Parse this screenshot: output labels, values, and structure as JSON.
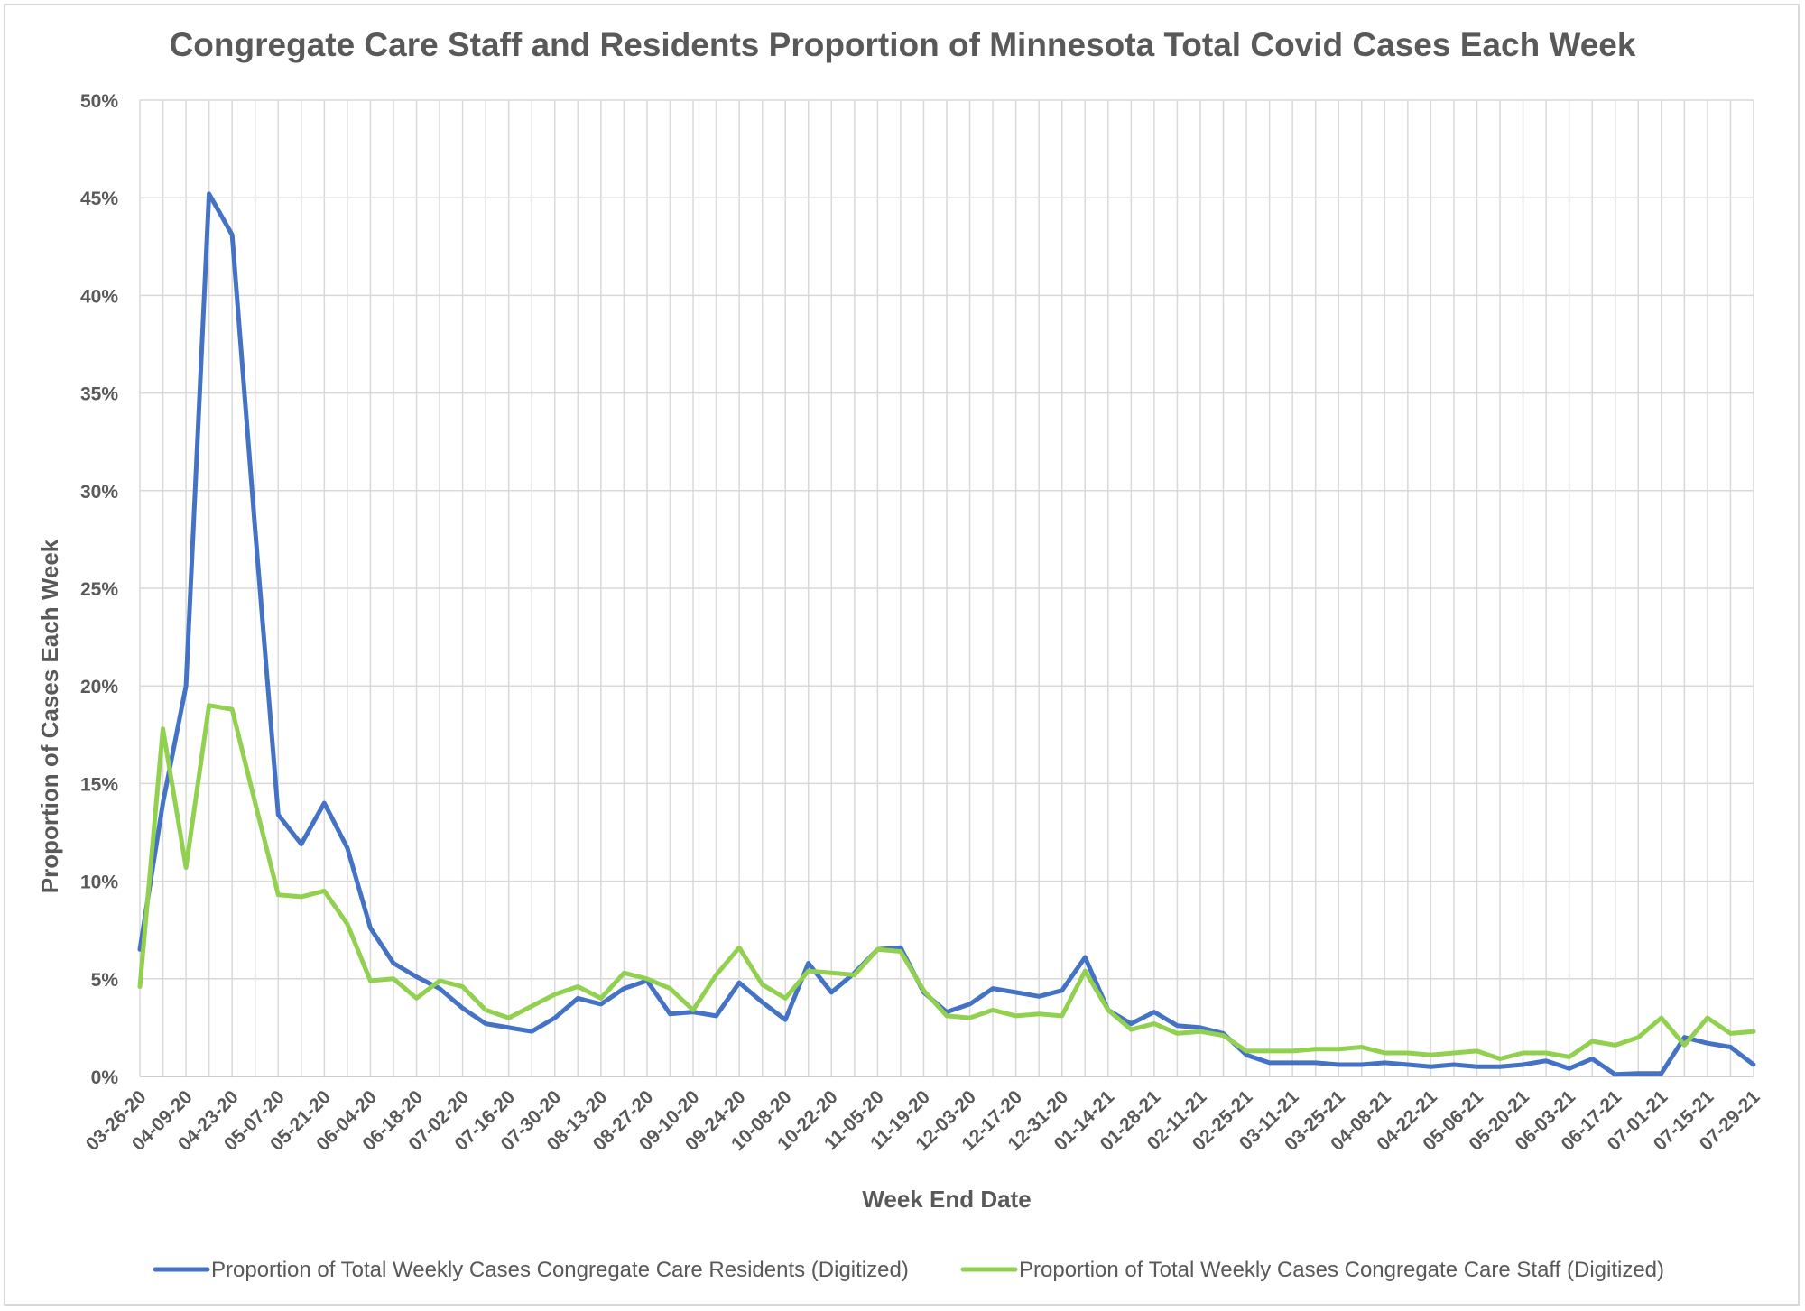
{
  "chart_data": {
    "type": "line",
    "title": "Congregate Care Staff and Residents Proportion of Minnesota Total Covid Cases Each Week",
    "xlabel": "Week End Date",
    "ylabel": "Proportion of Cases Each Week",
    "ylim": [
      0,
      50
    ],
    "y_ticks": [
      "0%",
      "5%",
      "10%",
      "15%",
      "20%",
      "25%",
      "30%",
      "35%",
      "40%",
      "45%",
      "50%"
    ],
    "grid": true,
    "legend_position": "bottom",
    "x_tick_labels": [
      "03-26-20",
      "04-09-20",
      "04-23-20",
      "05-07-20",
      "05-21-20",
      "06-04-20",
      "06-18-20",
      "07-02-20",
      "07-16-20",
      "07-30-20",
      "08-13-20",
      "08-27-20",
      "09-10-20",
      "09-24-20",
      "10-08-20",
      "10-22-20",
      "11-05-20",
      "11-19-20",
      "12-03-20",
      "12-17-20",
      "12-31-20",
      "01-14-21",
      "01-28-21",
      "02-11-21",
      "02-25-21",
      "03-11-21",
      "03-25-21",
      "04-08-21",
      "04-22-21",
      "05-06-21",
      "05-20-21",
      "06-03-21",
      "06-17-21",
      "07-01-21",
      "07-15-21",
      "07-29-21"
    ],
    "x": [
      "03-26-20",
      "04-02-20",
      "04-09-20",
      "04-16-20",
      "04-23-20",
      "04-30-20",
      "05-07-20",
      "05-14-20",
      "05-21-20",
      "05-28-20",
      "06-04-20",
      "06-11-20",
      "06-18-20",
      "06-25-20",
      "07-02-20",
      "07-09-20",
      "07-16-20",
      "07-23-20",
      "07-30-20",
      "08-06-20",
      "08-13-20",
      "08-20-20",
      "08-27-20",
      "09-03-20",
      "09-10-20",
      "09-17-20",
      "09-24-20",
      "10-01-20",
      "10-08-20",
      "10-15-20",
      "10-22-20",
      "10-29-20",
      "11-05-20",
      "11-12-20",
      "11-19-20",
      "11-26-20",
      "12-03-20",
      "12-10-20",
      "12-17-20",
      "12-24-20",
      "12-31-20",
      "01-07-21",
      "01-14-21",
      "01-21-21",
      "01-28-21",
      "02-04-21",
      "02-11-21",
      "02-18-21",
      "02-25-21",
      "03-04-21",
      "03-11-21",
      "03-18-21",
      "03-25-21",
      "04-01-21",
      "04-08-21",
      "04-15-21",
      "04-22-21",
      "04-29-21",
      "05-06-21",
      "05-13-21",
      "05-20-21",
      "05-27-21",
      "06-03-21",
      "06-10-21",
      "06-17-21",
      "06-24-21",
      "07-01-21",
      "07-08-21",
      "07-15-21",
      "07-22-21",
      "07-29-21"
    ],
    "series": [
      {
        "name": "Proportion of Total Weekly Cases Congregate Care Residents (Digitized)",
        "color": "#4472c4",
        "values": [
          6.5,
          14.0,
          20.0,
          45.2,
          43.1,
          28.0,
          13.4,
          11.9,
          14.0,
          11.7,
          7.6,
          5.8,
          5.1,
          4.5,
          3.5,
          2.7,
          2.5,
          2.3,
          3.0,
          4.0,
          3.7,
          4.5,
          4.9,
          3.2,
          3.3,
          3.1,
          4.8,
          3.8,
          2.9,
          5.8,
          4.3,
          5.3,
          6.5,
          6.6,
          4.3,
          3.3,
          3.7,
          4.5,
          4.3,
          4.1,
          4.4,
          6.1,
          3.4,
          2.7,
          3.3,
          2.6,
          2.5,
          2.2,
          1.1,
          0.7,
          0.7,
          0.7,
          0.6,
          0.6,
          0.7,
          0.6,
          0.5,
          0.6,
          0.5,
          0.5,
          0.6,
          0.8,
          0.4,
          0.9,
          0.1,
          0.15,
          0.15,
          2.0,
          1.7,
          1.5,
          0.6
        ]
      },
      {
        "name": "Proportion of Total Weekly Cases Congregate Care Staff (Digitized)",
        "color": "#92d050",
        "values": [
          4.6,
          17.8,
          10.7,
          19.0,
          18.8,
          14.0,
          9.3,
          9.2,
          9.5,
          7.8,
          4.9,
          5.0,
          4.0,
          4.9,
          4.6,
          3.4,
          3.0,
          3.6,
          4.2,
          4.6,
          4.0,
          5.3,
          5.0,
          4.5,
          3.4,
          5.2,
          6.6,
          4.7,
          4.0,
          5.4,
          5.3,
          5.2,
          6.5,
          6.4,
          4.4,
          3.1,
          3.0,
          3.4,
          3.1,
          3.2,
          3.1,
          5.4,
          3.4,
          2.4,
          2.7,
          2.2,
          2.3,
          2.1,
          1.3,
          1.3,
          1.3,
          1.4,
          1.4,
          1.5,
          1.2,
          1.2,
          1.1,
          1.2,
          1.3,
          0.9,
          1.2,
          1.2,
          1.0,
          1.8,
          1.6,
          2.0,
          3.0,
          1.6,
          3.0,
          2.2,
          2.3
        ]
      }
    ]
  }
}
